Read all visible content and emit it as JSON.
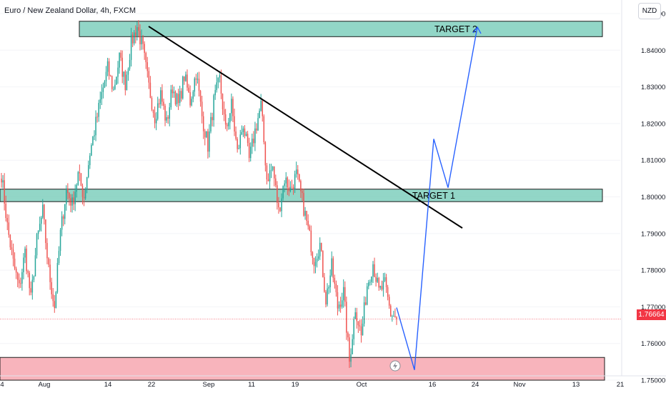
{
  "header": {
    "title": "Euro / New Zealand Dollar, 4h, FXCM",
    "currency_button": "NZD"
  },
  "last_price_label": "1.76664",
  "colors": {
    "up": "#26a69a",
    "down": "#ef5350",
    "zone_green": "#7fcfbd",
    "zone_red": "#f7a7b0",
    "forecast": "#2962ff",
    "trendline": "#000000"
  },
  "chart_data": {
    "type": "candlestick",
    "y_axis": {
      "range": [
        1.7465,
        1.8537
      ],
      "ticks": [
        "1.85000",
        "1.84000",
        "1.83000",
        "1.82000",
        "1.81000",
        "1.80000",
        "1.79000",
        "1.78000",
        "1.77000",
        "1.76000",
        "1.75000"
      ]
    },
    "x_axis": {
      "ticks": [
        "4",
        "Aug",
        "14",
        "22",
        "Sep",
        "11",
        "19",
        "Oct",
        "16",
        "24",
        "Nov",
        "13",
        "21"
      ]
    },
    "zones": [
      {
        "label": "TARGET 2",
        "kind": "target",
        "from_tick": "Aug",
        "to_tick": "21",
        "low": 1.8437,
        "high": 1.8479
      },
      {
        "label": "TARGET 1",
        "kind": "target",
        "from_tick": "4",
        "to_tick": "21",
        "low": 1.7987,
        "high": 1.8021
      },
      {
        "label": "",
        "kind": "support",
        "from_tick": "4",
        "to_tick": "21",
        "low": 1.75,
        "high": 1.7562
      }
    ],
    "trendline": {
      "from": {
        "x_tick": "22",
        "price": 1.8465
      },
      "to": {
        "x_tick": "24",
        "price": 1.7915
      }
    },
    "forecast_path": [
      1.7698,
      1.7528,
      1.8158,
      1.8025,
      1.8463
    ],
    "series": [
      {
        "name": "EURNZD",
        "path": [
          1.8062,
          1.792,
          1.782,
          1.775,
          1.785,
          1.772,
          1.788,
          1.796,
          1.78,
          1.77,
          1.79,
          1.802,
          1.798,
          1.806,
          1.8,
          1.812,
          1.82,
          1.828,
          1.835,
          1.829,
          1.838,
          1.831,
          1.842,
          1.8465,
          1.84,
          1.83,
          1.822,
          1.828,
          1.82,
          1.83,
          1.825,
          1.833,
          1.826,
          1.834,
          1.822,
          1.814,
          1.826,
          1.832,
          1.818,
          1.825,
          1.812,
          1.82,
          1.81,
          1.818,
          1.825,
          1.805,
          1.808,
          1.796,
          1.805,
          1.802,
          1.806,
          1.799,
          1.791,
          1.783,
          1.787,
          1.772,
          1.781,
          1.77,
          1.774,
          1.755,
          1.77,
          1.762,
          1.776,
          1.782,
          1.774,
          1.776,
          1.768,
          1.767
        ]
      }
    ],
    "last_price": 1.76664
  }
}
